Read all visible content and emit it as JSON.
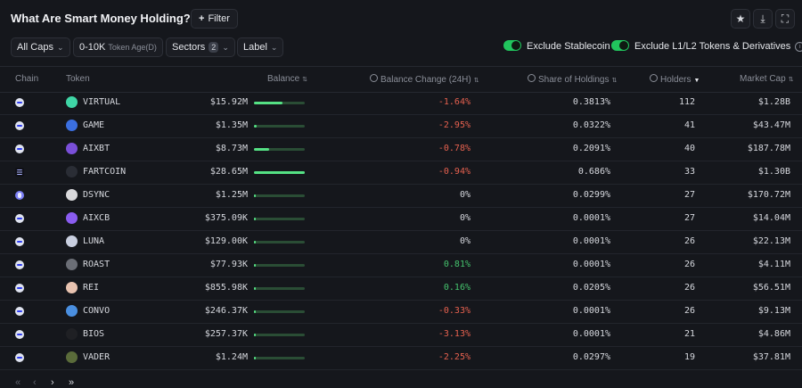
{
  "header": {
    "title": "What Are Smart Money Holding?",
    "info_glyph": "i",
    "filter_label": "Filter",
    "filter_icon": "plus-icon",
    "actions": [
      "star-icon",
      "download-icon",
      "fullscreen-icon"
    ]
  },
  "filters": {
    "caps": "All Caps",
    "token_age_value": "0-10K",
    "token_age_label": "Token Age(D)",
    "sectors": "Sectors",
    "sectors_count": "2",
    "label": "Label",
    "exclude_stablecoin": "Exclude Stablecoin",
    "exclude_stablecoin_on": true,
    "exclude_l1l2": "Exclude L1/L2 Tokens & Derivatives",
    "exclude_l1l2_on": true
  },
  "table": {
    "columns": {
      "chain": "Chain",
      "token": "Token",
      "balance": "Balance",
      "balance_change": "Balance Change (24H)",
      "share": "Share of Holdings",
      "holders": "Holders",
      "market_cap": "Market Cap"
    },
    "sorted_by": "Holders",
    "rows": [
      {
        "chain": "base",
        "token": "VIRTUAL",
        "icon_color": "#3fd6a6",
        "balance": "$15.92M",
        "balance_bar": 0.56,
        "change": "-1.64%",
        "change_dir": "neg",
        "share": "0.3813%",
        "holders": "112",
        "market_cap": "$1.28B"
      },
      {
        "chain": "base",
        "token": "GAME",
        "icon_color": "#3b6fe0",
        "balance": "$1.35M",
        "balance_bar": 0.05,
        "change": "-2.95%",
        "change_dir": "neg",
        "share": "0.0322%",
        "holders": "41",
        "market_cap": "$43.47M"
      },
      {
        "chain": "base",
        "token": "AIXBT",
        "icon_color": "#7a4fd8",
        "balance": "$8.73M",
        "balance_bar": 0.3,
        "change": "-0.78%",
        "change_dir": "neg",
        "share": "0.2091%",
        "holders": "40",
        "market_cap": "$187.78M"
      },
      {
        "chain": "solana",
        "token": "FARTCOIN",
        "icon_color": "#2a2d35",
        "balance": "$28.65M",
        "balance_bar": 1.0,
        "change": "-0.94%",
        "change_dir": "neg",
        "share": "0.686%",
        "holders": "33",
        "market_cap": "$1.30B"
      },
      {
        "chain": "eth",
        "token": "DSYNC",
        "icon_color": "#d9d9dc",
        "balance": "$1.25M",
        "balance_bar": 0.04,
        "change": "0%",
        "change_dir": "neutral",
        "share": "0.0299%",
        "holders": "27",
        "market_cap": "$170.72M"
      },
      {
        "chain": "base",
        "token": "AIXCB",
        "icon_color": "#8a5cf0",
        "balance": "$375.09K",
        "balance_bar": 0.01,
        "change": "0%",
        "change_dir": "neutral",
        "share": "0.0001%",
        "holders": "27",
        "market_cap": "$14.04M"
      },
      {
        "chain": "base",
        "token": "LUNA",
        "icon_color": "#c9cfe0",
        "balance": "$129.00K",
        "balance_bar": 0.005,
        "change": "0%",
        "change_dir": "neutral",
        "share": "0.0001%",
        "holders": "26",
        "market_cap": "$22.13M"
      },
      {
        "chain": "base",
        "token": "ROAST",
        "icon_color": "#6b6e76",
        "balance": "$77.93K",
        "balance_bar": 0.003,
        "change": "0.81%",
        "change_dir": "pos",
        "share": "0.0001%",
        "holders": "26",
        "market_cap": "$4.11M"
      },
      {
        "chain": "base",
        "token": "REI",
        "icon_color": "#e8c3b0",
        "balance": "$855.98K",
        "balance_bar": 0.03,
        "change": "0.16%",
        "change_dir": "pos",
        "share": "0.0205%",
        "holders": "26",
        "market_cap": "$56.51M"
      },
      {
        "chain": "base",
        "token": "CONVO",
        "icon_color": "#4a8fe0",
        "balance": "$246.37K",
        "balance_bar": 0.009,
        "change": "-0.33%",
        "change_dir": "neg",
        "share": "0.0001%",
        "holders": "26",
        "market_cap": "$9.13M"
      },
      {
        "chain": "base",
        "token": "BIOS",
        "icon_color": "#1f2024",
        "balance": "$257.37K",
        "balance_bar": 0.009,
        "change": "-3.13%",
        "change_dir": "neg",
        "share": "0.0001%",
        "holders": "21",
        "market_cap": "$4.86M"
      },
      {
        "chain": "base",
        "token": "VADER",
        "icon_color": "#5a6b3a",
        "balance": "$1.24M",
        "balance_bar": 0.04,
        "change": "-2.25%",
        "change_dir": "neg",
        "share": "0.0297%",
        "holders": "19",
        "market_cap": "$37.81M"
      }
    ]
  },
  "colors": {
    "background": "#15171c",
    "toggle_on": "#21c55d",
    "positive": "#45c36d",
    "negative": "#e6614f",
    "bar": "#55e184"
  },
  "pagination_icons": [
    "first-page-icon",
    "prev-page-icon",
    "next-page-icon",
    "last-page-icon"
  ]
}
